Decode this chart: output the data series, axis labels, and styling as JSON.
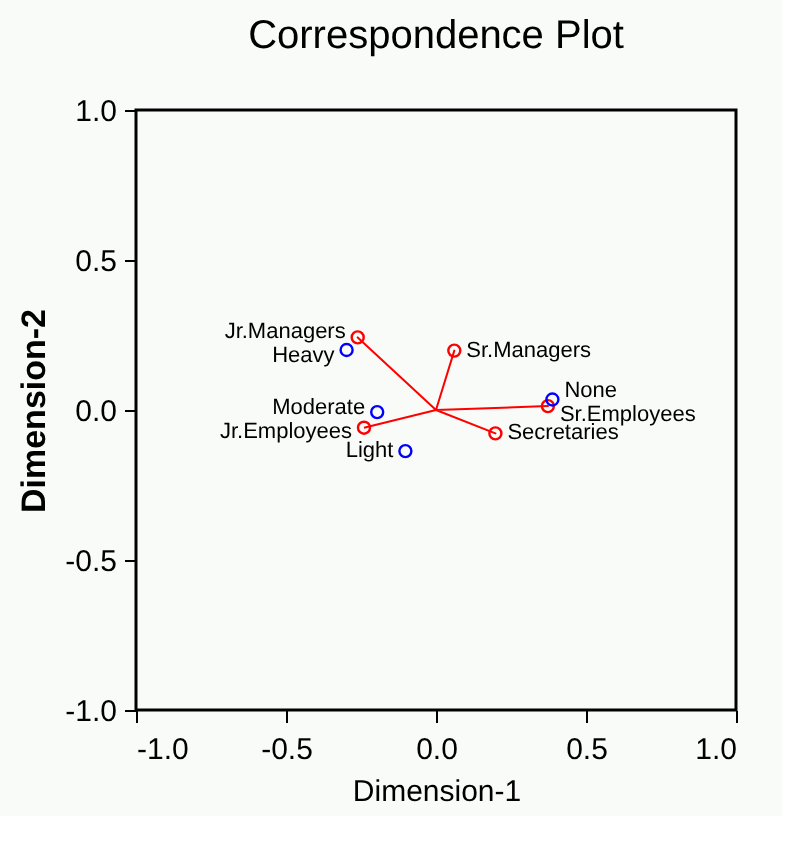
{
  "chart_data": {
    "type": "scatter",
    "title": "Correspondence Plot",
    "xlabel": "Dimension-1",
    "ylabel": "Dimension-2",
    "xlim": [
      -1.0,
      1.0
    ],
    "ylim": [
      -1.0,
      1.0
    ],
    "xticks": [
      {
        "value": -1,
        "label": "-1.0"
      },
      {
        "value": -0.5,
        "label": "-0.5"
      },
      {
        "value": 0,
        "label": "0.0"
      },
      {
        "value": 0.5,
        "label": "0.5"
      },
      {
        "value": 1,
        "label": "1.0"
      }
    ],
    "yticks": [
      {
        "value": -1,
        "label": "-1.0"
      },
      {
        "value": -0.5,
        "label": "-0.5"
      },
      {
        "value": 0,
        "label": "0.0"
      },
      {
        "value": 0.5,
        "label": "0.5"
      },
      {
        "value": 1,
        "label": "1.0"
      }
    ],
    "grid": false,
    "series": [
      {
        "type": "line",
        "color": "#ff0000",
        "marker": "none",
        "x": [
          0,
          -0.261,
          0,
          0.061,
          0,
          0.373,
          0,
          0.198,
          0,
          -0.24
        ],
        "values": [
          0,
          0.242,
          0,
          0.198,
          0,
          0.013,
          0,
          -0.078,
          0,
          -0.059
        ]
      },
      {
        "color": "#ff0000",
        "marker": "circle",
        "x": [
          -0.261,
          0.061,
          0.373,
          0.198,
          -0.24
        ],
        "values": [
          0.242,
          0.198,
          0.013,
          -0.078,
          -0.059
        ]
      },
      {
        "color": "#0000ff",
        "marker": "circle",
        "x": [
          -0.298,
          -0.196,
          -0.102,
          0.388
        ],
        "values": [
          0.2,
          -0.007,
          -0.137,
          0.035
        ]
      }
    ],
    "annotations": [
      {
        "text": "Jr.Managers",
        "x": -0.261,
        "y": 0.242
      },
      {
        "text": "Sr.Managers",
        "x": 0.061,
        "y": 0.198
      },
      {
        "text": "Sr.Employees",
        "x": 0.373,
        "y": 0.013
      },
      {
        "text": "Secretaries",
        "x": 0.198,
        "y": -0.078
      },
      {
        "text": "Jr.Employees",
        "x": -0.24,
        "y": -0.059
      },
      {
        "text": "Heavy",
        "x": -0.298,
        "y": 0.2
      },
      {
        "text": "Moderate",
        "x": -0.196,
        "y": -0.007
      },
      {
        "text": "Light",
        "x": -0.102,
        "y": -0.137
      },
      {
        "text": "None",
        "x": 0.388,
        "y": 0.035
      }
    ]
  }
}
